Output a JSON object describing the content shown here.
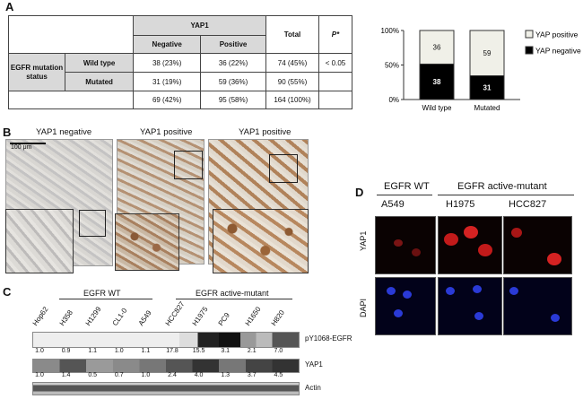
{
  "panels": {
    "a": "A",
    "b": "B",
    "c": "C",
    "d": "D"
  },
  "table": {
    "yap_header": "YAP1",
    "col_negative": "Negative",
    "col_positive": "Positive",
    "col_total": "Total",
    "col_p": "P*",
    "row_group": "EGFR mutation status",
    "row_wild": "Wild type",
    "row_mut": "Mutated",
    "wild": {
      "neg": "38 (23%)",
      "pos": "36 (22%)",
      "total": "74 (45%)",
      "p": "< 0.05"
    },
    "mut": {
      "neg": "31 (19%)",
      "pos": "59 (36%)",
      "total": "90 (55%)"
    },
    "sum": {
      "neg": "69 (42%)",
      "pos": "95 (58%)",
      "total": "164 (100%)"
    }
  },
  "chart_data": {
    "type": "bar",
    "stacked": true,
    "categories": [
      "Wild type",
      "Mutated"
    ],
    "series": [
      {
        "name": "YAP negative",
        "values": [
          38,
          31
        ],
        "color": "#000000"
      },
      {
        "name": "YAP positive",
        "values": [
          36,
          59
        ],
        "color": "#f0f0e8"
      }
    ],
    "yticks": [
      "0%",
      "50%",
      "100%"
    ],
    "ylim": [
      0,
      100
    ],
    "legend": "right"
  },
  "histology": {
    "labels": [
      "YAP1 negative",
      "YAP1 positive",
      "YAP1 positive"
    ],
    "scalebar": "100 μm"
  },
  "western": {
    "group_wt": "EGFR WT",
    "group_mut": "EGFR active-mutant",
    "cells": [
      "Hop62",
      "H358",
      "H1299",
      "CL1-0",
      "A549",
      "HCC827",
      "H1975",
      "PC9",
      "H1650",
      "H820"
    ],
    "row1_values": [
      "1.0",
      "0.9",
      "1.1",
      "1.0",
      "1.1",
      "17.8",
      "15.5",
      "3.1",
      "2.1",
      "7.0"
    ],
    "row2_values": [
      "1.0",
      "1.4",
      "0.5",
      "0.7",
      "1.0",
      "2.4",
      "4.0",
      "1.3",
      "3.7",
      "4.5"
    ],
    "band_labels": [
      "pY1068-EGFR",
      "YAP1",
      "Actin"
    ]
  },
  "fluorescence": {
    "group_wt": "EGFR WT",
    "group_mut": "EGFR active-mutant",
    "cols": [
      "A549",
      "H1975",
      "HCC827"
    ],
    "rows": [
      "YAP1",
      "DAPI"
    ]
  }
}
